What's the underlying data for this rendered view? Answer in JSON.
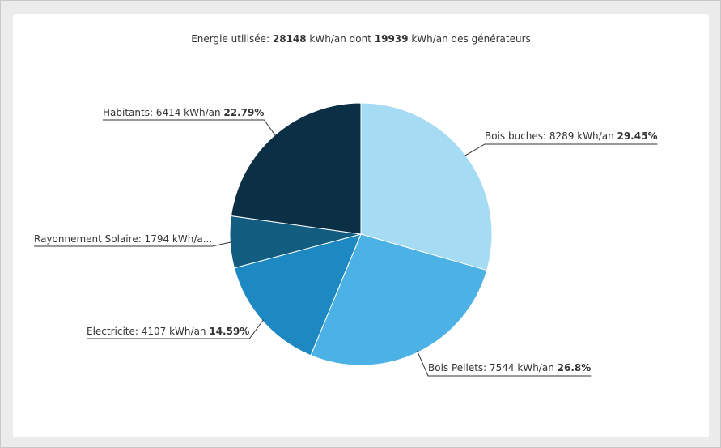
{
  "chart_data": {
    "type": "pie",
    "title": {
      "prefix": "Energie utilisée: ",
      "total": "28148",
      "middle": " kWh/an dont ",
      "generators": "19939",
      "suffix": " kWh/an des générateurs"
    },
    "start_angle_deg": 0,
    "slices": [
      {
        "label": "Bois buches",
        "value": 8289,
        "value_text": "8289 kWh/an",
        "percent": "29.45%",
        "color": "#a6dbf4"
      },
      {
        "label": "Bois Pellets",
        "value": 7544,
        "value_text": "7544 kWh/an",
        "percent": "26.8%",
        "color": "#4cb1e5"
      },
      {
        "label": "Electricite",
        "value": 4107,
        "value_text": "4107 kWh/an",
        "percent": "14.59%",
        "color": "#1d88c2"
      },
      {
        "label": "Rayonnement Solaire",
        "value": 1794,
        "value_text": "1794 kWh/a...",
        "percent": "",
        "color": "#135d81"
      },
      {
        "label": "Habitants",
        "value": 6414,
        "value_text": "6414 kWh/an",
        "percent": "22.79%",
        "color": "#0b2f44"
      }
    ]
  }
}
